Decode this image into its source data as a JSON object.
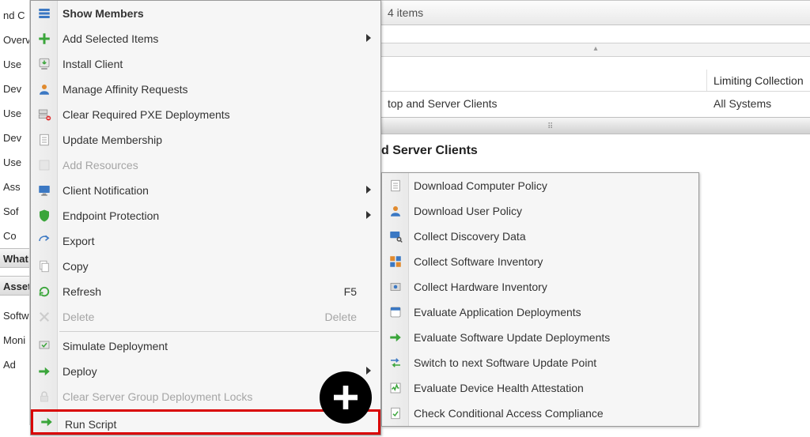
{
  "colors": {
    "highlight_border": "#d90000",
    "menu_bg": "#f6f6f6",
    "menu_border": "#9a9a9a",
    "disabled_text": "#a5a5a5"
  },
  "left_strip": {
    "items": [
      {
        "label": "nd C",
        "bold": false
      },
      {
        "label": "Overv",
        "bold": false
      },
      {
        "label": "Use",
        "bold": false
      },
      {
        "label": "Dev",
        "bold": false
      },
      {
        "label": "Use",
        "bold": false
      },
      {
        "label": "Dev",
        "bold": false
      },
      {
        "label": "Use",
        "bold": false
      },
      {
        "label": "Ass",
        "bold": false
      },
      {
        "label": "Sof",
        "bold": false
      },
      {
        "label": "Co",
        "bold": false
      }
    ],
    "section_what": "What",
    "section_asset": "Asset",
    "tail": [
      {
        "label": "Softw"
      },
      {
        "label": "Moni"
      },
      {
        "label": "Ad"
      }
    ]
  },
  "context_menu": {
    "items": [
      {
        "type": "item",
        "label": "Show Members",
        "bold": true,
        "icon": "members",
        "submenu": false
      },
      {
        "type": "item",
        "label": "Add Selected Items",
        "icon": "plus-green",
        "submenu": true
      },
      {
        "type": "item",
        "label": "Install Client",
        "icon": "install",
        "submenu": false
      },
      {
        "type": "item",
        "label": "Manage Affinity Requests",
        "icon": "person",
        "submenu": false
      },
      {
        "type": "item",
        "label": "Clear Required PXE Deployments",
        "icon": "server-clear",
        "submenu": false
      },
      {
        "type": "item",
        "label": "Update Membership",
        "icon": "sheet",
        "submenu": false
      },
      {
        "type": "item",
        "label": "Add Resources",
        "icon": "faded",
        "submenu": false,
        "disabled": true
      },
      {
        "type": "item",
        "label": "Client Notification",
        "icon": "monitor",
        "submenu": true
      },
      {
        "type": "item",
        "label": "Endpoint Protection",
        "icon": "shield-green",
        "submenu": true
      },
      {
        "type": "item",
        "label": "Export",
        "icon": "export",
        "submenu": false
      },
      {
        "type": "item",
        "label": "Copy",
        "icon": "copy",
        "submenu": false
      },
      {
        "type": "item",
        "label": "Refresh",
        "icon": "refresh",
        "submenu": false,
        "shortcut": "F5"
      },
      {
        "type": "item",
        "label": "Delete",
        "icon": "x-faded",
        "submenu": false,
        "shortcut": "Delete",
        "disabled": true
      },
      {
        "type": "sep"
      },
      {
        "type": "item",
        "label": "Simulate Deployment",
        "icon": "sim",
        "submenu": false
      },
      {
        "type": "item",
        "label": "Deploy",
        "icon": "arrow-right-green",
        "submenu": true
      },
      {
        "type": "item",
        "label": "Clear Server Group Deployment Locks",
        "icon": "lock-faded",
        "submenu": false,
        "disabled": true
      },
      {
        "type": "item",
        "label": "Run Script",
        "icon": "arrow-right-green",
        "submenu": false,
        "highlight": true
      }
    ]
  },
  "submenu": {
    "items": [
      {
        "label": "Download Computer Policy",
        "icon": "sheet"
      },
      {
        "label": "Download User Policy",
        "icon": "person"
      },
      {
        "label": "Collect Discovery Data",
        "icon": "monitor-search"
      },
      {
        "label": "Collect Software Inventory",
        "icon": "boxes"
      },
      {
        "label": "Collect Hardware Inventory",
        "icon": "hw"
      },
      {
        "label": "Evaluate Application Deployments",
        "icon": "app"
      },
      {
        "label": "Evaluate Software Update Deployments",
        "icon": "arrow-right-green"
      },
      {
        "label": "Switch to next Software Update Point",
        "icon": "switch"
      },
      {
        "label": "Evaluate Device Health Attestation",
        "icon": "health"
      },
      {
        "label": "Check Conditional Access Compliance",
        "icon": "check-doc"
      }
    ]
  },
  "background": {
    "header_text": "4 items",
    "expander_glyph": "▴",
    "column_label": "Limiting Collection",
    "row_col1": "top and Server Clients",
    "row_col2": "All Systems",
    "thick_bar_grip": "⠿",
    "detail_title": "d Server Clients"
  }
}
